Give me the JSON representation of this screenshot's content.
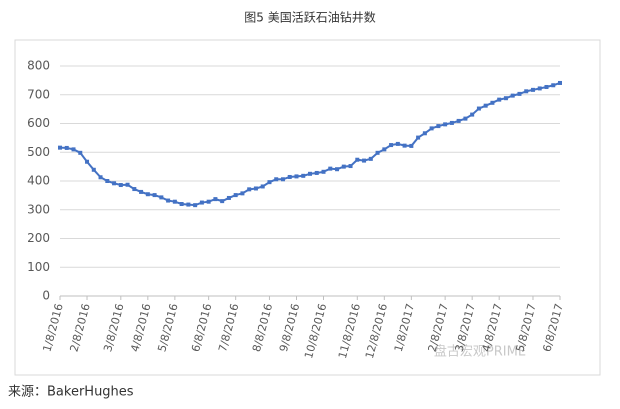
{
  "chart_data": {
    "type": "line",
    "title": "图5   美国活跃石油钻井数",
    "categories": [
      "1/8/2016",
      null,
      null,
      null,
      "2/8/2016",
      null,
      null,
      null,
      null,
      "3/8/2016",
      null,
      null,
      null,
      "4/8/2016",
      null,
      null,
      null,
      "5/8/2016",
      null,
      null,
      null,
      null,
      "6/8/2016",
      null,
      null,
      null,
      "7/8/2016",
      null,
      null,
      null,
      null,
      "8/8/2016",
      null,
      null,
      null,
      "9/8/2016",
      null,
      null,
      null,
      "10/8/2016",
      null,
      null,
      null,
      null,
      "11/8/2016",
      null,
      null,
      null,
      "12/8/2016",
      null,
      null,
      null,
      "1/8/2017",
      null,
      null,
      null,
      null,
      "2/8/2017",
      null,
      null,
      null,
      "3/8/2017",
      null,
      null,
      null,
      "4/8/2017",
      null,
      null,
      null,
      null,
      "5/8/2017",
      null,
      null,
      null,
      "6/8/2017"
    ],
    "series": [
      {
        "name": "美国活跃石油钻井数",
        "color": "#4472c4",
        "values": [
          516,
          515,
          510,
          498,
          467,
          439,
          413,
          400,
          392,
          386,
          387,
          372,
          362,
          354,
          351,
          343,
          332,
          328,
          320,
          318,
          316,
          325,
          328,
          337,
          330,
          341,
          351,
          357,
          371,
          374,
          381,
          396,
          406,
          406,
          414,
          416,
          418,
          425,
          428,
          432,
          443,
          441,
          450,
          452,
          474,
          471,
          477,
          498,
          510,
          525,
          529,
          523,
          522,
          551,
          566,
          583,
          591,
          597,
          602,
          609,
          617,
          631,
          652,
          662,
          672,
          683,
          688,
          697,
          703,
          712,
          717,
          722,
          727,
          733,
          741
        ]
      }
    ],
    "ylim": [
      0,
      800
    ],
    "yticks": [
      0,
      100,
      200,
      300,
      400,
      500,
      600,
      700,
      800
    ],
    "grid": true,
    "source": "来源：BakerHughes",
    "watermark": "盘古宏观PRIME"
  }
}
